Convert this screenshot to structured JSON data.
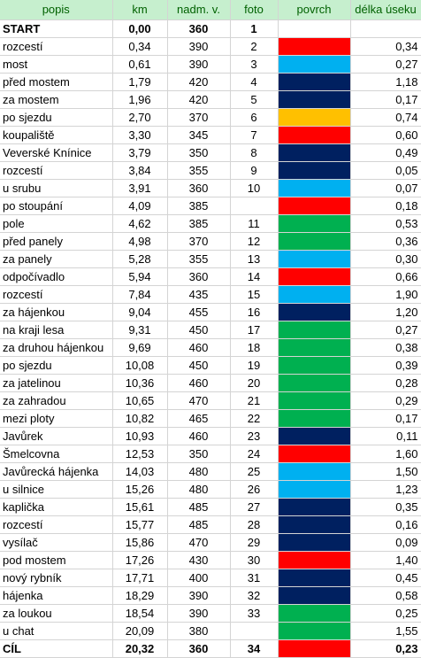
{
  "colors": {
    "header_fill": "#c6efce",
    "header_text": "#006100",
    "red": "#ff0000",
    "light_blue": "#00b0f0",
    "dark_blue": "#002060",
    "orange": "#ffc000",
    "green": "#00b050"
  },
  "headers": [
    "popis",
    "km",
    "nadm. v.",
    "foto",
    "povrch",
    "délka úseku"
  ],
  "rows": [
    {
      "popis": "START",
      "km": "0,00",
      "vyska": "360",
      "foto": "1",
      "povrch": "",
      "delka": "",
      "bold": true
    },
    {
      "popis": "rozcestí",
      "km": "0,34",
      "vyska": "390",
      "foto": "2",
      "povrch": "red",
      "delka": "0,34"
    },
    {
      "popis": "most",
      "km": "0,61",
      "vyska": "390",
      "foto": "3",
      "povrch": "light_blue",
      "delka": "0,27"
    },
    {
      "popis": "před mostem",
      "km": "1,79",
      "vyska": "420",
      "foto": "4",
      "povrch": "dark_blue",
      "delka": "1,18"
    },
    {
      "popis": "za mostem",
      "km": "1,96",
      "vyska": "420",
      "foto": "5",
      "povrch": "dark_blue",
      "delka": "0,17"
    },
    {
      "popis": "po sjezdu",
      "km": "2,70",
      "vyska": "370",
      "foto": "6",
      "povrch": "orange",
      "delka": "0,74"
    },
    {
      "popis": "koupaliště",
      "km": "3,30",
      "vyska": "345",
      "foto": "7",
      "povrch": "red",
      "delka": "0,60"
    },
    {
      "popis": "Veverské Knínice",
      "km": "3,79",
      "vyska": "350",
      "foto": "8",
      "povrch": "dark_blue",
      "delka": "0,49"
    },
    {
      "popis": "rozcestí",
      "km": "3,84",
      "vyska": "355",
      "foto": "9",
      "povrch": "dark_blue",
      "delka": "0,05"
    },
    {
      "popis": "u srubu",
      "km": "3,91",
      "vyska": "360",
      "foto": "10",
      "povrch": "light_blue",
      "delka": "0,07"
    },
    {
      "popis": "po stoupání",
      "km": "4,09",
      "vyska": "385",
      "foto": "",
      "povrch": "red",
      "delka": "0,18"
    },
    {
      "popis": "pole",
      "km": "4,62",
      "vyska": "385",
      "foto": "11",
      "povrch": "green",
      "delka": "0,53"
    },
    {
      "popis": "před panely",
      "km": "4,98",
      "vyska": "370",
      "foto": "12",
      "povrch": "green",
      "delka": "0,36"
    },
    {
      "popis": "za panely",
      "km": "5,28",
      "vyska": "355",
      "foto": "13",
      "povrch": "light_blue",
      "delka": "0,30"
    },
    {
      "popis": "odpočívadlo",
      "km": "5,94",
      "vyska": "360",
      "foto": "14",
      "povrch": "red",
      "delka": "0,66"
    },
    {
      "popis": "rozcestí",
      "km": "7,84",
      "vyska": "435",
      "foto": "15",
      "povrch": "light_blue",
      "delka": "1,90"
    },
    {
      "popis": "za hájenkou",
      "km": "9,04",
      "vyska": "455",
      "foto": "16",
      "povrch": "dark_blue",
      "delka": "1,20"
    },
    {
      "popis": "na kraji lesa",
      "km": "9,31",
      "vyska": "450",
      "foto": "17",
      "povrch": "green",
      "delka": "0,27"
    },
    {
      "popis": "za druhou hájenkou",
      "km": "9,69",
      "vyska": "460",
      "foto": "18",
      "povrch": "green",
      "delka": "0,38"
    },
    {
      "popis": "po sjezdu",
      "km": "10,08",
      "vyska": "450",
      "foto": "19",
      "povrch": "green",
      "delka": "0,39"
    },
    {
      "popis": "za jatelinou",
      "km": "10,36",
      "vyska": "460",
      "foto": "20",
      "povrch": "green",
      "delka": "0,28"
    },
    {
      "popis": "za zahradou",
      "km": "10,65",
      "vyska": "470",
      "foto": "21",
      "povrch": "green",
      "delka": "0,29"
    },
    {
      "popis": "mezi ploty",
      "km": "10,82",
      "vyska": "465",
      "foto": "22",
      "povrch": "green",
      "delka": "0,17"
    },
    {
      "popis": "Javůrek",
      "km": "10,93",
      "vyska": "460",
      "foto": "23",
      "povrch": "dark_blue",
      "delka": "0,11"
    },
    {
      "popis": "Šmelcovna",
      "km": "12,53",
      "vyska": "350",
      "foto": "24",
      "povrch": "red",
      "delka": "1,60"
    },
    {
      "popis": "Javůrecká hájenka",
      "km": "14,03",
      "vyska": "480",
      "foto": "25",
      "povrch": "light_blue",
      "delka": "1,50"
    },
    {
      "popis": "u silnice",
      "km": "15,26",
      "vyska": "480",
      "foto": "26",
      "povrch": "light_blue",
      "delka": "1,23"
    },
    {
      "popis": "kaplička",
      "km": "15,61",
      "vyska": "485",
      "foto": "27",
      "povrch": "dark_blue",
      "delka": "0,35"
    },
    {
      "popis": "rozcestí",
      "km": "15,77",
      "vyska": "485",
      "foto": "28",
      "povrch": "dark_blue",
      "delka": "0,16"
    },
    {
      "popis": "vysílač",
      "km": "15,86",
      "vyska": "470",
      "foto": "29",
      "povrch": "dark_blue",
      "delka": "0,09"
    },
    {
      "popis": "pod mostem",
      "km": "17,26",
      "vyska": "430",
      "foto": "30",
      "povrch": "red",
      "delka": "1,40"
    },
    {
      "popis": "nový rybník",
      "km": "17,71",
      "vyska": "400",
      "foto": "31",
      "povrch": "dark_blue",
      "delka": "0,45"
    },
    {
      "popis": "hájenka",
      "km": "18,29",
      "vyska": "390",
      "foto": "32",
      "povrch": "dark_blue",
      "delka": "0,58"
    },
    {
      "popis": "za loukou",
      "km": "18,54",
      "vyska": "390",
      "foto": "33",
      "povrch": "green",
      "delka": "0,25"
    },
    {
      "popis": "u chat",
      "km": "20,09",
      "vyska": "380",
      "foto": "",
      "povrch": "green",
      "delka": "1,55"
    },
    {
      "popis": "CÍL",
      "km": "20,32",
      "vyska": "360",
      "foto": "34",
      "povrch": "red",
      "delka": "0,23",
      "bold": true
    }
  ]
}
